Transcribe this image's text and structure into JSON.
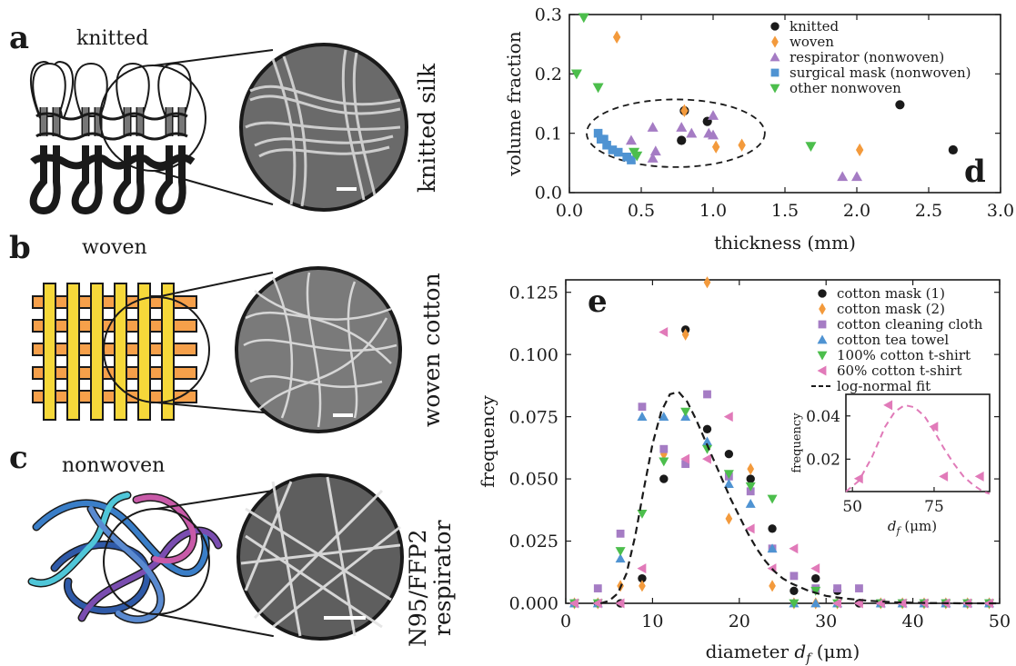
{
  "panels": {
    "a": {
      "letter": "a",
      "title": "knitted",
      "side_label": "knitted silk"
    },
    "b": {
      "letter": "b",
      "title": "woven",
      "side_label": "woven cotton"
    },
    "c": {
      "letter": "c",
      "title": "nonwoven",
      "side_label_1": "N95/FFP2",
      "side_label_2": "respirator"
    }
  },
  "colors": {
    "black": "#1a1a1a",
    "orange": "#f39a3c",
    "purple": "#a57cc4",
    "blue": "#4f93d2",
    "green": "#4cbe4c",
    "pink": "#e17ab9",
    "fit": "#1a1a1a",
    "inset_fit": "#e07ab8"
  },
  "chart_data": [
    {
      "panel": "d",
      "type": "scatter",
      "xlabel": "thickness (mm)",
      "ylabel": "volume fraction",
      "xlim": [
        0,
        3.0
      ],
      "ylim": [
        0,
        0.3
      ],
      "xticks": [
        "0.0",
        "0.5",
        "1.0",
        "1.5",
        "2.0",
        "2.5",
        "3.0"
      ],
      "yticks": [
        "0.0",
        "0.1",
        "0.2",
        "0.3"
      ],
      "legend_position": "top-right",
      "series": [
        {
          "name": "knitted",
          "marker": "circle",
          "color": "#1a1a1a",
          "points": [
            [
              0.8,
              0.138
            ],
            [
              0.96,
              0.12
            ],
            [
              0.78,
              0.088
            ],
            [
              2.3,
              0.148
            ],
            [
              2.67,
              0.072
            ]
          ]
        },
        {
          "name": "woven",
          "marker": "diamond",
          "color": "#f39a3c",
          "points": [
            [
              0.33,
              0.262
            ],
            [
              0.8,
              0.138
            ],
            [
              1.02,
              0.077
            ],
            [
              1.2,
              0.08
            ],
            [
              2.02,
              0.072
            ]
          ]
        },
        {
          "name": "respirator (nonwoven)",
          "marker": "triangle-up",
          "color": "#a57cc4",
          "points": [
            [
              0.43,
              0.088
            ],
            [
              0.58,
              0.11
            ],
            [
              0.6,
              0.07
            ],
            [
              0.58,
              0.058
            ],
            [
              0.78,
              0.11
            ],
            [
              0.85,
              0.1
            ],
            [
              0.97,
              0.1
            ],
            [
              1.0,
              0.13
            ],
            [
              1.0,
              0.097
            ],
            [
              1.9,
              0.027
            ],
            [
              2.0,
              0.027
            ]
          ]
        },
        {
          "name": "surgical mask (nonwoven)",
          "marker": "square",
          "color": "#4f93d2",
          "points": [
            [
              0.2,
              0.1
            ],
            [
              0.22,
              0.09
            ],
            [
              0.24,
              0.09
            ],
            [
              0.26,
              0.08
            ],
            [
              0.3,
              0.072
            ],
            [
              0.34,
              0.068
            ],
            [
              0.4,
              0.06
            ],
            [
              0.43,
              0.055
            ]
          ]
        },
        {
          "name": "other nonwoven",
          "marker": "triangle-down",
          "color": "#4cbe4c",
          "points": [
            [
              0.1,
              0.295
            ],
            [
              0.05,
              0.2
            ],
            [
              0.2,
              0.177
            ],
            [
              0.45,
              0.068
            ],
            [
              0.47,
              0.062
            ],
            [
              1.68,
              0.078
            ]
          ]
        }
      ],
      "annotation": "dashed ellipse around nonwoven cluster",
      "legend": [
        "knitted",
        "woven",
        "respirator (nonwoven)",
        "surgical mask (nonwoven)",
        "other nonwoven"
      ],
      "corner_letter": "d"
    },
    {
      "panel": "e",
      "type": "scatter",
      "xlabel": "diameter d_f (μm)",
      "xlabel_parts": [
        "diameter ",
        "d",
        "f",
        " (μm)"
      ],
      "ylabel": "frequency",
      "xlim": [
        0,
        50
      ],
      "ylim": [
        0,
        0.13
      ],
      "xticks": [
        "0",
        "10",
        "20",
        "30",
        "40",
        "50"
      ],
      "yticks": [
        "0.000",
        "0.025",
        "0.050",
        "0.075",
        "0.100",
        "0.125"
      ],
      "legend_position": "top-right",
      "corner_letter": "e",
      "series": [
        {
          "name": "cotton mask (1)",
          "marker": "circle",
          "color": "#1a1a1a",
          "points": [
            [
              1.0,
              0.0
            ],
            [
              3.7,
              0.0
            ],
            [
              6.3,
              0.0
            ],
            [
              8.8,
              0.01
            ],
            [
              11.3,
              0.05
            ],
            [
              13.8,
              0.11
            ],
            [
              16.3,
              0.07
            ],
            [
              18.8,
              0.06
            ],
            [
              21.3,
              0.05
            ],
            [
              23.8,
              0.03
            ],
            [
              26.3,
              0.005
            ],
            [
              28.8,
              0.01
            ],
            [
              31.3,
              0.005
            ],
            [
              33.8,
              0.0
            ],
            [
              36.3,
              0.0
            ],
            [
              38.8,
              0.0
            ],
            [
              41.3,
              0.0
            ],
            [
              43.8,
              0.0
            ],
            [
              46.3,
              0.0
            ],
            [
              48.8,
              0.0
            ]
          ]
        },
        {
          "name": "cotton mask (2)",
          "marker": "diamond",
          "color": "#f39a3c",
          "points": [
            [
              1.0,
              0.0
            ],
            [
              3.7,
              0.0
            ],
            [
              6.3,
              0.007
            ],
            [
              8.8,
              0.007
            ],
            [
              11.3,
              0.06
            ],
            [
              13.8,
              0.108
            ],
            [
              16.3,
              0.129
            ],
            [
              18.8,
              0.034
            ],
            [
              21.3,
              0.054
            ],
            [
              23.8,
              0.007
            ],
            [
              26.3,
              0.0
            ],
            [
              28.8,
              0.0
            ],
            [
              31.3,
              0.0
            ],
            [
              36.3,
              0.0
            ],
            [
              38.8,
              0.0
            ],
            [
              41.3,
              0.0
            ],
            [
              43.8,
              0.0
            ],
            [
              46.3,
              0.0
            ],
            [
              48.8,
              0.0
            ]
          ]
        },
        {
          "name": "cotton cleaning cloth",
          "marker": "square",
          "color": "#a57cc4",
          "points": [
            [
              1.0,
              0.0
            ],
            [
              3.7,
              0.006
            ],
            [
              6.3,
              0.028
            ],
            [
              8.8,
              0.079
            ],
            [
              11.3,
              0.062
            ],
            [
              13.8,
              0.056
            ],
            [
              16.3,
              0.084
            ],
            [
              18.8,
              0.051
            ],
            [
              21.3,
              0.045
            ],
            [
              23.8,
              0.022
            ],
            [
              26.3,
              0.011
            ],
            [
              28.8,
              0.006
            ],
            [
              31.3,
              0.006
            ],
            [
              33.8,
              0.006
            ],
            [
              36.3,
              0.0
            ],
            [
              38.8,
              0.0
            ],
            [
              41.3,
              0.0
            ],
            [
              43.8,
              0.0
            ],
            [
              46.3,
              0.0
            ],
            [
              48.8,
              0.0
            ]
          ]
        },
        {
          "name": "cotton tea towel",
          "marker": "triangle-up",
          "color": "#4f93d2",
          "points": [
            [
              1.0,
              0.0
            ],
            [
              3.7,
              0.0
            ],
            [
              6.3,
              0.018
            ],
            [
              8.8,
              0.075
            ],
            [
              11.3,
              0.075
            ],
            [
              13.8,
              0.075
            ],
            [
              16.3,
              0.065
            ],
            [
              18.8,
              0.048
            ],
            [
              21.3,
              0.04
            ],
            [
              23.8,
              0.022
            ],
            [
              26.3,
              0.0
            ],
            [
              28.8,
              0.0
            ],
            [
              31.3,
              0.0
            ],
            [
              36.3,
              0.0
            ],
            [
              38.8,
              0.0
            ],
            [
              41.3,
              0.0
            ],
            [
              43.8,
              0.0
            ],
            [
              46.3,
              0.0
            ],
            [
              48.8,
              0.0
            ]
          ]
        },
        {
          "name": "100% cotton t-shirt",
          "marker": "triangle-down",
          "color": "#4cbe4c",
          "points": [
            [
              1.0,
              0.0
            ],
            [
              3.7,
              0.0
            ],
            [
              6.3,
              0.021
            ],
            [
              8.8,
              0.036
            ],
            [
              11.3,
              0.057
            ],
            [
              13.8,
              0.077
            ],
            [
              16.3,
              0.062
            ],
            [
              18.8,
              0.052
            ],
            [
              21.3,
              0.047
            ],
            [
              23.8,
              0.042
            ],
            [
              26.3,
              0.0
            ],
            [
              28.8,
              0.005
            ],
            [
              31.3,
              0.0
            ],
            [
              36.3,
              0.0
            ],
            [
              38.8,
              0.0
            ],
            [
              41.3,
              0.0
            ],
            [
              43.8,
              0.0
            ],
            [
              46.3,
              0.0
            ],
            [
              48.8,
              0.0
            ]
          ]
        },
        {
          "name": "60% cotton t-shirt",
          "marker": "triangle-left",
          "color": "#e17ab9",
          "points": [
            [
              1.0,
              0.0
            ],
            [
              3.7,
              0.0
            ],
            [
              6.3,
              0.0
            ],
            [
              8.8,
              0.014
            ],
            [
              11.3,
              0.109
            ],
            [
              13.8,
              0.058
            ],
            [
              16.3,
              0.058
            ],
            [
              18.8,
              0.075
            ],
            [
              21.3,
              0.03
            ],
            [
              23.8,
              0.014
            ],
            [
              26.3,
              0.022
            ],
            [
              28.8,
              0.014
            ],
            [
              31.3,
              0.0
            ],
            [
              33.8,
              0.0
            ],
            [
              36.3,
              0.0
            ],
            [
              38.8,
              0.0
            ],
            [
              41.3,
              0.0
            ],
            [
              43.8,
              0.0
            ],
            [
              46.3,
              0.0
            ],
            [
              48.8,
              0.0
            ]
          ]
        },
        {
          "name": "log-normal fit",
          "marker": "dashed-line",
          "color": "#1a1a1a",
          "x": [
            4,
            5,
            6,
            7,
            8,
            9,
            10,
            11,
            12,
            13,
            14,
            15,
            16,
            17,
            18,
            19,
            20,
            21,
            22,
            23,
            24,
            25,
            26,
            28,
            30,
            32,
            35,
            38,
            42,
            46,
            50
          ],
          "y": [
            0.0,
            0.001,
            0.004,
            0.012,
            0.027,
            0.046,
            0.064,
            0.077,
            0.084,
            0.085,
            0.081,
            0.074,
            0.066,
            0.058,
            0.05,
            0.042,
            0.035,
            0.028,
            0.022,
            0.017,
            0.013,
            0.01,
            0.008,
            0.005,
            0.003,
            0.002,
            0.001,
            0.0004,
            0.0001,
            0.0,
            0.0
          ]
        }
      ],
      "legend": [
        "cotton mask (1)",
        "cotton mask (2)",
        "cotton cleaning cloth",
        "cotton tea towel",
        "100% cotton t-shirt",
        "60% cotton t-shirt",
        "log-normal fit"
      ],
      "inset": {
        "type": "scatter",
        "xlabel": "d_f (μm)",
        "xlabel_parts": [
          "d",
          "f",
          " (μm)"
        ],
        "ylabel": "frequency",
        "xlim": [
          48,
          92
        ],
        "ylim": [
          0.005,
          0.05
        ],
        "xticks": [
          "50",
          "75"
        ],
        "yticks": [
          "0.02",
          "0.04"
        ],
        "points": [
          [
            52,
            0.011
          ],
          [
            61,
            0.045
          ],
          [
            75,
            0.035
          ],
          [
            78,
            0.012
          ],
          [
            89,
            0.012
          ]
        ],
        "fit_x": [
          48,
          52,
          56,
          60,
          63,
          66,
          69,
          72,
          75,
          78,
          81,
          84,
          87,
          90,
          92
        ],
        "fit_y": [
          0.005,
          0.01,
          0.021,
          0.035,
          0.042,
          0.045,
          0.044,
          0.04,
          0.033,
          0.025,
          0.018,
          0.012,
          0.008,
          0.005,
          0.004
        ]
      }
    }
  ]
}
